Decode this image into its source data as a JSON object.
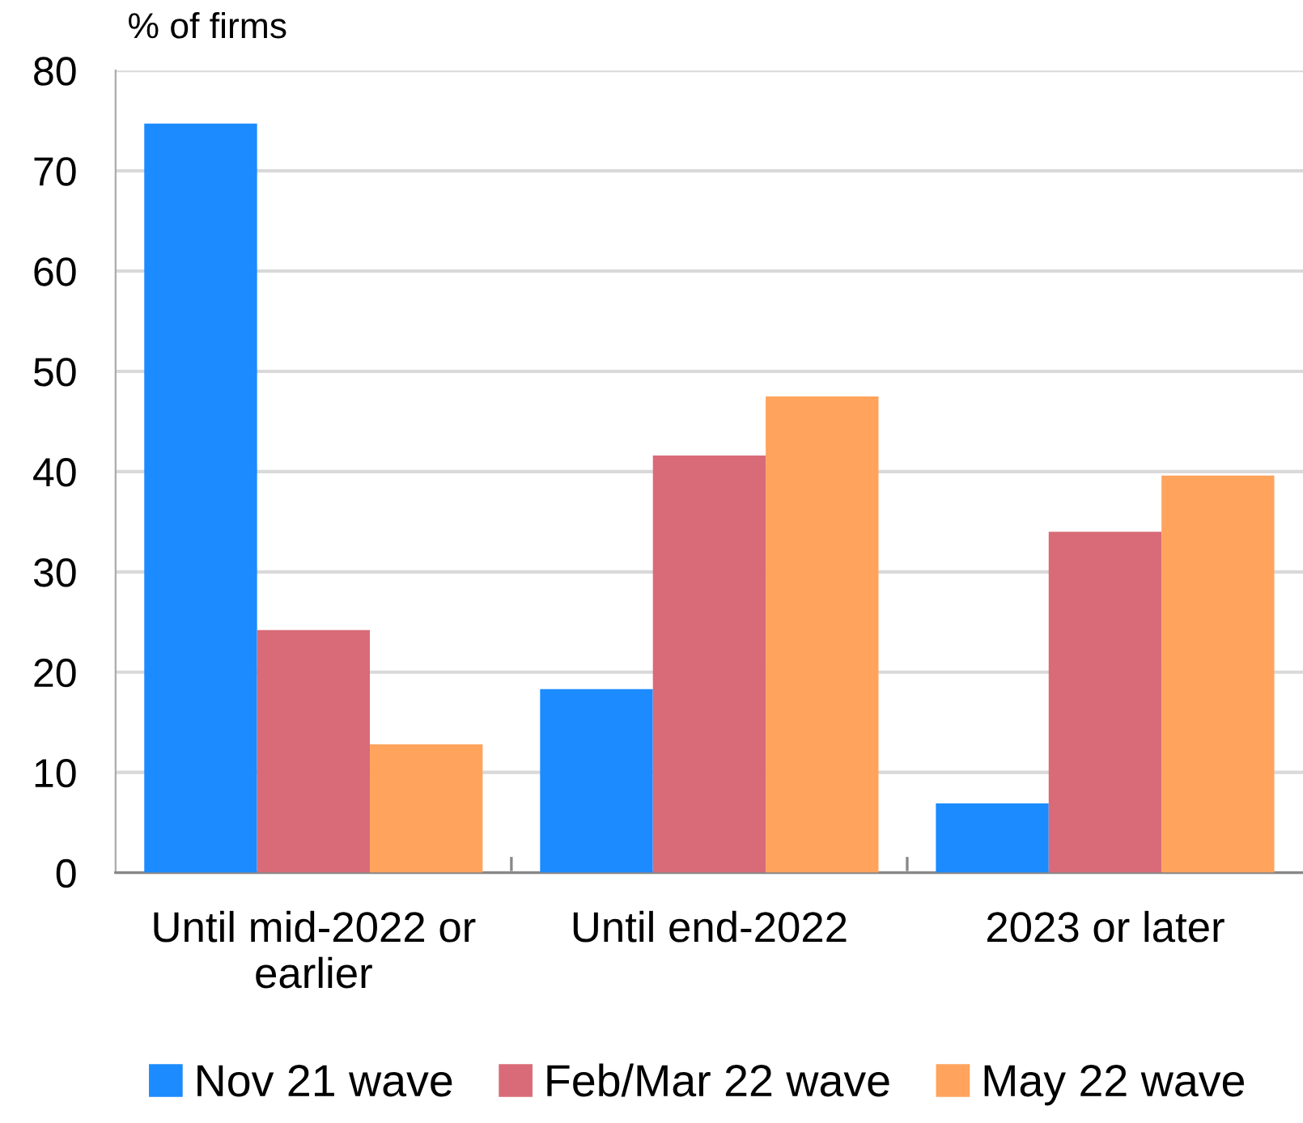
{
  "chart_data": {
    "type": "bar",
    "ylabel": "% of firms",
    "categories": [
      "Until mid-2022 or\nearlier",
      "Until end-2022",
      "2023 or later"
    ],
    "series": [
      {
        "name": "Nov 21 wave",
        "color": "#1b8bff",
        "values": [
          74.7,
          18.3,
          6.9
        ]
      },
      {
        "name": "Feb/Mar 22 wave",
        "color": "#d96b78",
        "values": [
          24.2,
          41.6,
          34.0
        ]
      },
      {
        "name": "May 22 wave",
        "color": "#ffa35d",
        "values": [
          12.8,
          47.5,
          39.6
        ]
      }
    ],
    "ylim": [
      0,
      80
    ],
    "yticks": [
      0,
      10,
      20,
      30,
      40,
      50,
      60,
      70,
      80
    ],
    "grid": "y",
    "legend": "bottom"
  }
}
